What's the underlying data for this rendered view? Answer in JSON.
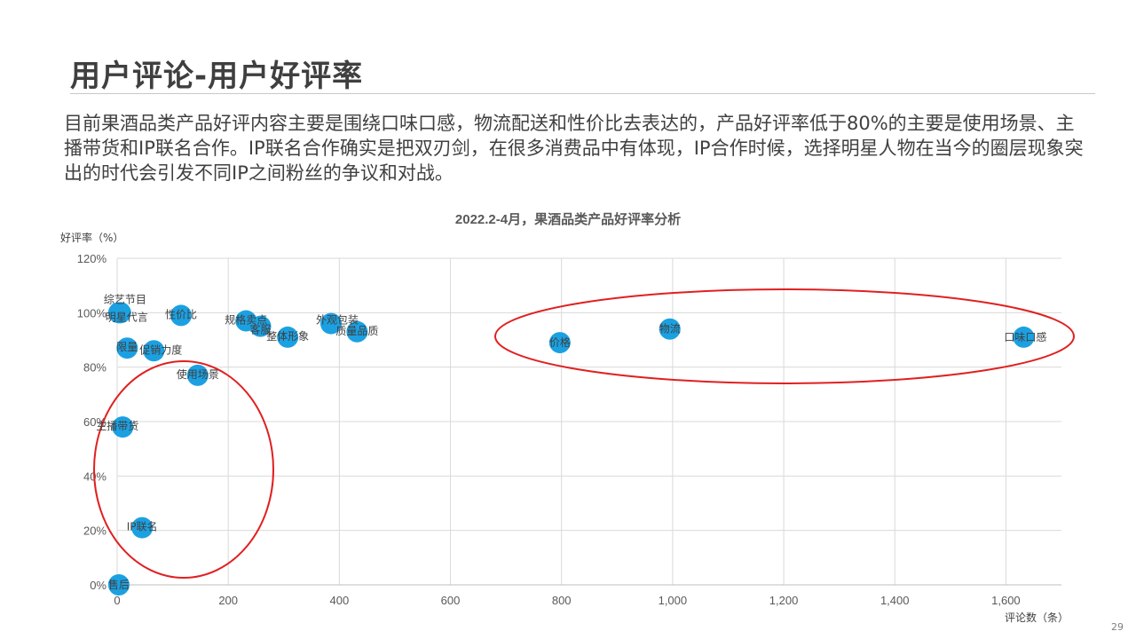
{
  "slide": {
    "title": "用户评论-用户好评率",
    "body": "目前果酒品类产品好评内容主要是围绕口味口感，物流配送和性价比去表达的，产品好评率低于80%的主要是使用场景、主播带货和IP联名合作。IP联名合作确实是把双刃剑，在很多消费品中有体现，IP合作时候，选择明星人物在当今的圈层现象突出的时代会引发不同IP之间粉丝的争议和对战。",
    "page_number": "29"
  },
  "chart_data": {
    "type": "scatter",
    "title": "2022.2-4月，果酒品类产品好评率分析",
    "xlabel": "评论数（条）",
    "ylabel": "好评率（%）",
    "xlim": [
      0,
      1700
    ],
    "ylim": [
      0,
      120
    ],
    "x_ticks": [
      0,
      200,
      400,
      600,
      800,
      1000,
      1200,
      1400,
      1600
    ],
    "x_tick_labels": [
      "0",
      "200",
      "400",
      "600",
      "800",
      "1,000",
      "1,200",
      "1,400",
      "1,600"
    ],
    "y_ticks": [
      0,
      20,
      40,
      60,
      80,
      100,
      120
    ],
    "y_tick_labels": [
      "0%",
      "20%",
      "40%",
      "60%",
      "80%",
      "100%",
      "120%"
    ],
    "grid": true,
    "point_color": "#1ba1e2",
    "annotation_color": "#e02020",
    "points": [
      {
        "label": "综艺节目",
        "x": 3,
        "y": 100
      },
      {
        "label": "明星代言",
        "x": 6,
        "y": 100
      },
      {
        "label": "性价比",
        "x": 115,
        "y": 99
      },
      {
        "label": "规格卖点",
        "x": 232,
        "y": 97
      },
      {
        "label": "客服",
        "x": 258,
        "y": 95
      },
      {
        "label": "外观包装",
        "x": 385,
        "y": 96
      },
      {
        "label": "质量品质",
        "x": 432,
        "y": 93
      },
      {
        "label": "整体形象",
        "x": 307,
        "y": 91
      },
      {
        "label": "限量",
        "x": 18,
        "y": 87
      },
      {
        "label": "促销力度",
        "x": 66,
        "y": 86
      },
      {
        "label": "使用场景",
        "x": 145,
        "y": 77
      },
      {
        "label": "主播带货",
        "x": 10,
        "y": 58
      },
      {
        "label": "IP联名",
        "x": 45,
        "y": 21
      },
      {
        "label": "售后",
        "x": 3,
        "y": 0
      },
      {
        "label": "价格",
        "x": 797,
        "y": 89
      },
      {
        "label": "物流",
        "x": 995,
        "y": 94
      },
      {
        "label": "口味口感",
        "x": 1632,
        "y": 91
      }
    ]
  }
}
